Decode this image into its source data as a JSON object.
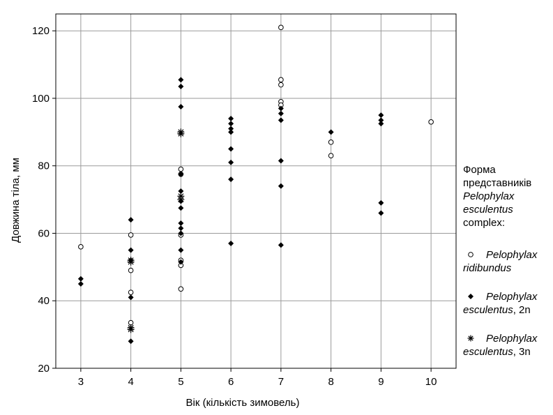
{
  "chart_data": {
    "type": "scatter",
    "title": "",
    "xlabel": "Вік (кількість зимовель)",
    "ylabel": "Довжина тіла, мм",
    "xlim": [
      2.5,
      10.5
    ],
    "ylim": [
      20,
      125
    ],
    "xticks": [
      3,
      4,
      5,
      6,
      7,
      8,
      9,
      10
    ],
    "yticks": [
      20,
      40,
      60,
      80,
      100,
      120
    ],
    "grid": true,
    "legend_placement": "right",
    "legend_title": [
      "Форма",
      "представників",
      "Pelophylax",
      "esculentus",
      "complex:"
    ],
    "series": [
      {
        "name": "Pelophylax ridibundus",
        "name_italic": "Pelophylax",
        "name_rest": "ridibundus",
        "rest_italic": "ridibundus",
        "suffix": "",
        "marker": "open-circle",
        "points": [
          [
            3,
            56
          ],
          [
            4,
            59.5
          ],
          [
            4,
            49
          ],
          [
            4,
            42.5
          ],
          [
            4,
            33.5
          ],
          [
            5,
            79
          ],
          [
            5,
            77.5
          ],
          [
            5,
            59.5
          ],
          [
            5,
            52
          ],
          [
            5,
            50.5
          ],
          [
            5,
            43.5
          ],
          [
            7,
            121
          ],
          [
            7,
            105.5
          ],
          [
            7,
            104
          ],
          [
            7,
            99
          ],
          [
            7,
            98
          ],
          [
            8,
            87
          ],
          [
            8,
            83
          ],
          [
            10,
            93
          ]
        ]
      },
      {
        "name": "Pelophylax esculentus, 2n",
        "name_italic": "Pelophylax",
        "name_rest": "esculentus, 2n",
        "rest_italic": "esculentus",
        "suffix": ", 2n",
        "marker": "filled-diamond",
        "points": [
          [
            3,
            46.5
          ],
          [
            3,
            45
          ],
          [
            4,
            64
          ],
          [
            4,
            55
          ],
          [
            4,
            52
          ],
          [
            4,
            41
          ],
          [
            4,
            28
          ],
          [
            5,
            105.5
          ],
          [
            5,
            103.5
          ],
          [
            5,
            97.5
          ],
          [
            5,
            77.5
          ],
          [
            5,
            72.5
          ],
          [
            5,
            69.5
          ],
          [
            5,
            67.5
          ],
          [
            5,
            63
          ],
          [
            5,
            61.5
          ],
          [
            5,
            60
          ],
          [
            5,
            55
          ],
          [
            5,
            51.5
          ],
          [
            6,
            94
          ],
          [
            6,
            92.5
          ],
          [
            6,
            91
          ],
          [
            6,
            90
          ],
          [
            6,
            85
          ],
          [
            6,
            81
          ],
          [
            6,
            76
          ],
          [
            6,
            57
          ],
          [
            7,
            97
          ],
          [
            7,
            95.5
          ],
          [
            7,
            93.5
          ],
          [
            7,
            81.5
          ],
          [
            7,
            74
          ],
          [
            7,
            56.5
          ],
          [
            8,
            90
          ],
          [
            9,
            95
          ],
          [
            9,
            93.5
          ],
          [
            9,
            92.5
          ],
          [
            9,
            69
          ],
          [
            9,
            66
          ]
        ]
      },
      {
        "name": "Pelophylax esculentus, 3n",
        "name_italic": "Pelophylax",
        "name_rest": "esculentus, 3n",
        "rest_italic": "esculentus",
        "suffix": ", 3n",
        "marker": "asterisk",
        "points": [
          [
            4,
            52
          ],
          [
            4,
            51.5
          ],
          [
            4,
            32
          ],
          [
            4,
            31.5
          ],
          [
            5,
            90
          ],
          [
            5,
            89.5
          ],
          [
            5,
            71
          ],
          [
            5,
            70
          ]
        ]
      }
    ]
  }
}
